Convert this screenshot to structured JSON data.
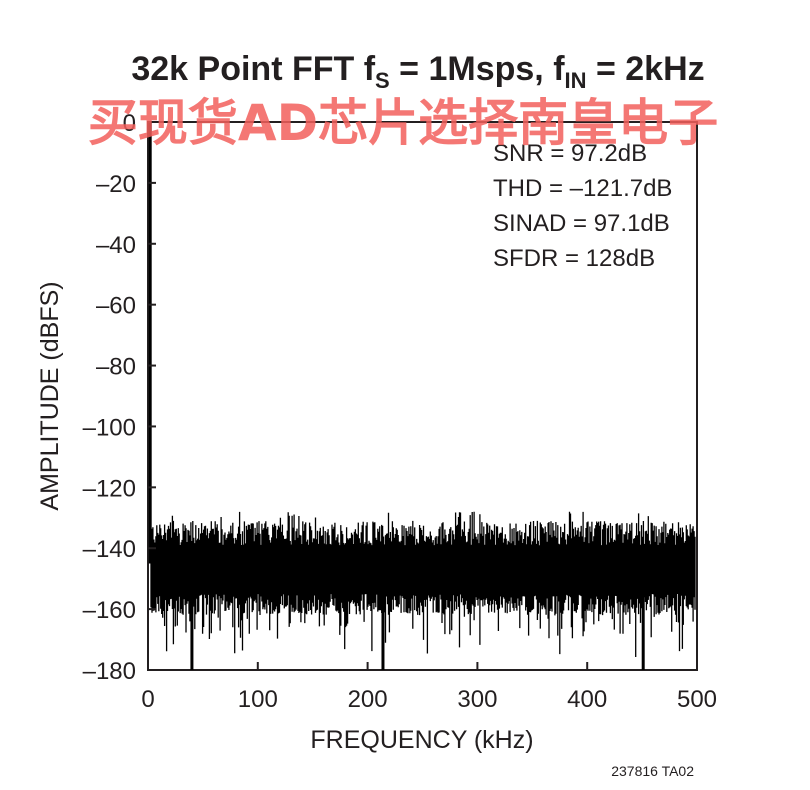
{
  "chart_data": {
    "type": "line",
    "title": {
      "main": "32k Point FFT f",
      "sub1": "S",
      "mid": " = 1Msps, f",
      "sub2": "IN",
      "end": " = 2kHz"
    },
    "xlabel": "FREQUENCY (kHz)",
    "ylabel": "AMPLITUDE (dBFS)",
    "xlim": [
      0,
      500
    ],
    "ylim": [
      -180,
      0
    ],
    "xticks": [
      0,
      100,
      200,
      300,
      400,
      500
    ],
    "yticks": [
      0,
      -20,
      -40,
      -60,
      -80,
      -100,
      -120,
      -140,
      -160,
      -180
    ],
    "ytick_labels": [
      "0",
      "–20",
      "–40",
      "–60",
      "–80",
      "–100",
      "–120",
      "–140",
      "–160",
      "–180"
    ],
    "grid": false,
    "series": [
      {
        "fundamental": {
          "x": 2,
          "y": 0
        },
        "noise_floor": {
          "typical_top": -135,
          "typical_bottom": -155,
          "max_top": -130,
          "min_bottom": -180
        },
        "deep_dips": [
          {
            "x": 40,
            "y": -180
          },
          {
            "x": 214,
            "y": -180
          },
          {
            "x": 451,
            "y": -180
          }
        ],
        "color": "#000000"
      }
    ],
    "annotations": [
      "SNR = 97.2dB",
      "THD = –121.7dB",
      "SINAD = 97.1dB",
      "SFDR = 128dB"
    ]
  },
  "figure_code": "237816 TA02",
  "watermark": "买现货AD芯片选择南皇电子"
}
